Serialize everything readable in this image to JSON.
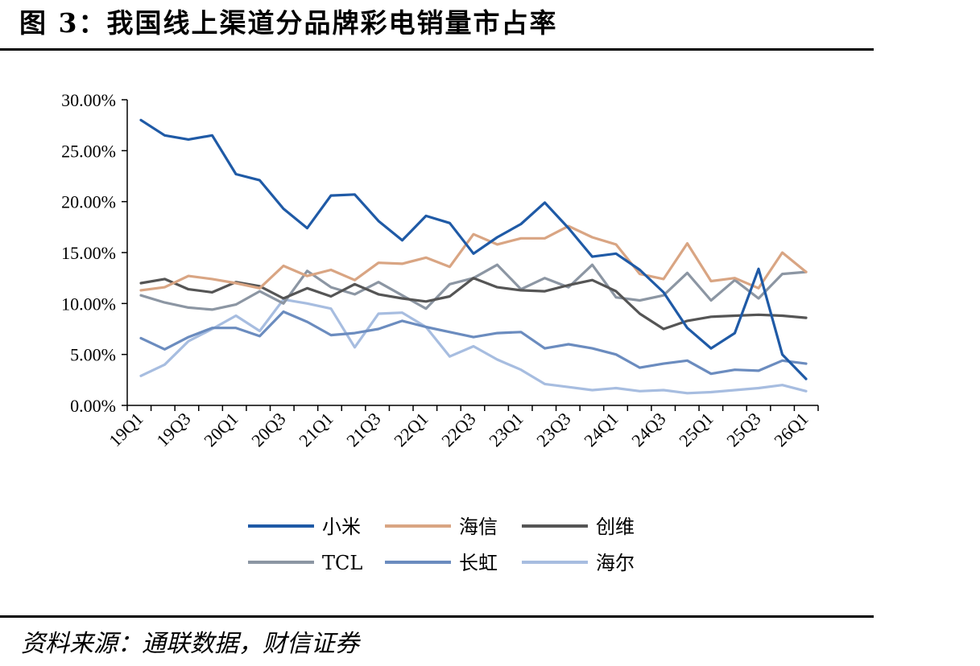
{
  "title": "图 3：我国线上渠道分品牌彩电销量市占率",
  "source": "资料来源：通联数据，财信证券",
  "chart_data": {
    "type": "line",
    "xlabel": "",
    "ylabel": "",
    "ylim": [
      0,
      30
    ],
    "y_ticks": [
      "0.00%",
      "5.00%",
      "10.00%",
      "15.00%",
      "20.00%",
      "25.00%",
      "30.00%"
    ],
    "x": [
      "19Q1",
      "19Q2",
      "19Q3",
      "19Q4",
      "20Q1",
      "20Q2",
      "20Q3",
      "20Q4",
      "21Q1",
      "21Q2",
      "21Q3",
      "21Q4",
      "22Q1",
      "22Q2",
      "22Q3",
      "22Q4",
      "23Q1",
      "23Q2",
      "23Q3",
      "23Q4",
      "24Q1",
      "24Q2",
      "24Q3",
      "24Q4",
      "25Q1",
      "25Q2",
      "25Q3",
      "25Q4",
      "26Q1"
    ],
    "x_tick_labels": [
      "19Q1",
      "19Q3",
      "20Q1",
      "20Q3",
      "21Q1",
      "21Q3",
      "22Q1",
      "22Q3",
      "23Q1",
      "23Q3",
      "24Q1",
      "24Q3",
      "25Q1",
      "25Q3",
      "26Q1"
    ],
    "legend_position": "bottom",
    "grid": false,
    "series": [
      {
        "name": "小米",
        "color": "#1f5aa6",
        "values": [
          28.0,
          26.5,
          26.1,
          26.5,
          22.7,
          22.1,
          19.3,
          17.4,
          20.6,
          20.7,
          18.1,
          16.2,
          18.6,
          17.9,
          14.9,
          16.5,
          17.8,
          19.9,
          17.4,
          14.6,
          14.9,
          13.3,
          11.1,
          7.6,
          5.6,
          7.1,
          13.4,
          5.0,
          2.6
        ]
      },
      {
        "name": "海信",
        "color": "#d9a583",
        "values": [
          11.3,
          11.6,
          12.7,
          12.4,
          12.0,
          11.5,
          13.7,
          12.7,
          13.3,
          12.3,
          14.0,
          13.9,
          14.5,
          13.6,
          16.8,
          15.8,
          16.4,
          16.4,
          17.6,
          16.5,
          15.8,
          12.9,
          12.4,
          15.9,
          12.2,
          12.5,
          11.5,
          15.0,
          13.1
        ]
      },
      {
        "name": "创维",
        "color": "#555555",
        "values": [
          12.0,
          12.4,
          11.4,
          11.1,
          12.1,
          11.7,
          10.5,
          11.5,
          10.7,
          11.9,
          10.9,
          10.5,
          10.2,
          10.7,
          12.5,
          11.6,
          11.3,
          11.2,
          11.8,
          12.3,
          11.2,
          9.0,
          7.5,
          8.3,
          8.7,
          8.8,
          8.9,
          8.8,
          8.6
        ]
      },
      {
        "name": "TCL",
        "color": "#8c96a3",
        "values": [
          10.8,
          10.1,
          9.6,
          9.4,
          9.9,
          11.2,
          10.0,
          13.2,
          11.6,
          10.9,
          12.1,
          10.8,
          9.5,
          11.9,
          12.5,
          13.8,
          11.4,
          12.5,
          11.6,
          13.8,
          10.6,
          10.3,
          10.8,
          13.0,
          10.3,
          12.3,
          10.5,
          12.9,
          13.1
        ]
      },
      {
        "name": "长虹",
        "color": "#6b8cbf",
        "values": [
          6.6,
          5.5,
          6.7,
          7.6,
          7.6,
          6.8,
          9.2,
          8.2,
          6.9,
          7.1,
          7.5,
          8.3,
          7.7,
          7.2,
          6.7,
          7.1,
          7.2,
          5.6,
          6.0,
          5.6,
          5.0,
          3.7,
          4.1,
          4.4,
          3.1,
          3.5,
          3.4,
          4.4,
          4.1
        ]
      },
      {
        "name": "海尔",
        "color": "#a7bde0",
        "values": [
          2.9,
          4.0,
          6.3,
          7.5,
          8.8,
          7.3,
          10.4,
          10.0,
          9.5,
          5.7,
          9.0,
          9.1,
          7.7,
          4.8,
          5.8,
          4.5,
          3.5,
          2.1,
          1.8,
          1.5,
          1.7,
          1.4,
          1.5,
          1.2,
          1.3,
          1.5,
          1.7,
          2.0,
          1.4
        ]
      }
    ]
  }
}
